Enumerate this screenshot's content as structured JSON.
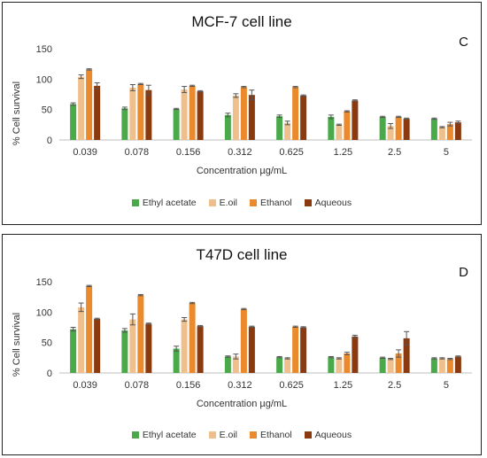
{
  "chart_data": [
    {
      "type": "bar",
      "title": "MCF-7 cell line",
      "panel_label": "C",
      "xlabel": "Concentration µg/mL",
      "ylabel": "% Cell survival",
      "ylim": [
        0,
        150
      ],
      "yticks": [
        0,
        50,
        100,
        150
      ],
      "categories": [
        "0.039",
        "0.078",
        "0.156",
        "0.312",
        "0.625",
        "1.25",
        "2.5",
        "5"
      ],
      "legend_position": "bottom",
      "series": [
        {
          "name": "Ethyl acetate",
          "color": "#4aaa4a",
          "values": [
            59,
            52,
            51,
            41,
            39,
            38,
            38,
            35
          ],
          "errors": [
            2,
            2,
            1,
            3,
            2,
            3,
            1,
            1
          ]
        },
        {
          "name": "E.oil",
          "color": "#f0c08c",
          "values": [
            104,
            86,
            83,
            73,
            28,
            25,
            23,
            21
          ],
          "errors": [
            3,
            5,
            5,
            3,
            3,
            1,
            4,
            1
          ]
        },
        {
          "name": "Ethanol",
          "color": "#eb8a2d",
          "values": [
            116,
            92,
            89,
            87,
            87,
            47,
            38,
            26
          ],
          "errors": [
            1,
            1,
            1,
            1,
            1,
            1,
            1,
            3
          ]
        },
        {
          "name": "Aqueous",
          "color": "#8b3a0f",
          "values": [
            89,
            82,
            80,
            74,
            73,
            65,
            35,
            29
          ],
          "errors": [
            5,
            8,
            1,
            8,
            1,
            1,
            1,
            2
          ]
        }
      ]
    },
    {
      "type": "bar",
      "title": "T47D cell line",
      "panel_label": "D",
      "xlabel": "Concentration µg/mL",
      "ylabel": "% Cell survival",
      "ylim": [
        0,
        150
      ],
      "yticks": [
        0,
        50,
        100,
        150
      ],
      "categories": [
        "0.039",
        "0.078",
        "0.156",
        "0.312",
        "0.625",
        "1.25",
        "2.5",
        "5"
      ],
      "legend_position": "bottom",
      "series": [
        {
          "name": "Ethyl acetate",
          "color": "#4aaa4a",
          "values": [
            72,
            70,
            40,
            27,
            26,
            26,
            25,
            24
          ],
          "errors": [
            3,
            3,
            4,
            1,
            1,
            1,
            1,
            1
          ]
        },
        {
          "name": "E.oil",
          "color": "#f0c08c",
          "values": [
            108,
            88,
            88,
            27,
            24,
            24,
            23,
            24
          ],
          "errors": [
            7,
            9,
            3,
            4,
            1,
            1,
            1,
            1
          ]
        },
        {
          "name": "Ethanol",
          "color": "#eb8a2d",
          "values": [
            143,
            128,
            115,
            105,
            76,
            32,
            32,
            23
          ],
          "errors": [
            1,
            1,
            1,
            1,
            1,
            2,
            6,
            1
          ]
        },
        {
          "name": "Aqueous",
          "color": "#8b3a0f",
          "values": [
            89,
            81,
            77,
            76,
            75,
            60,
            57,
            27
          ],
          "errors": [
            1,
            1,
            1,
            1,
            1,
            2,
            11,
            1
          ]
        }
      ]
    }
  ]
}
